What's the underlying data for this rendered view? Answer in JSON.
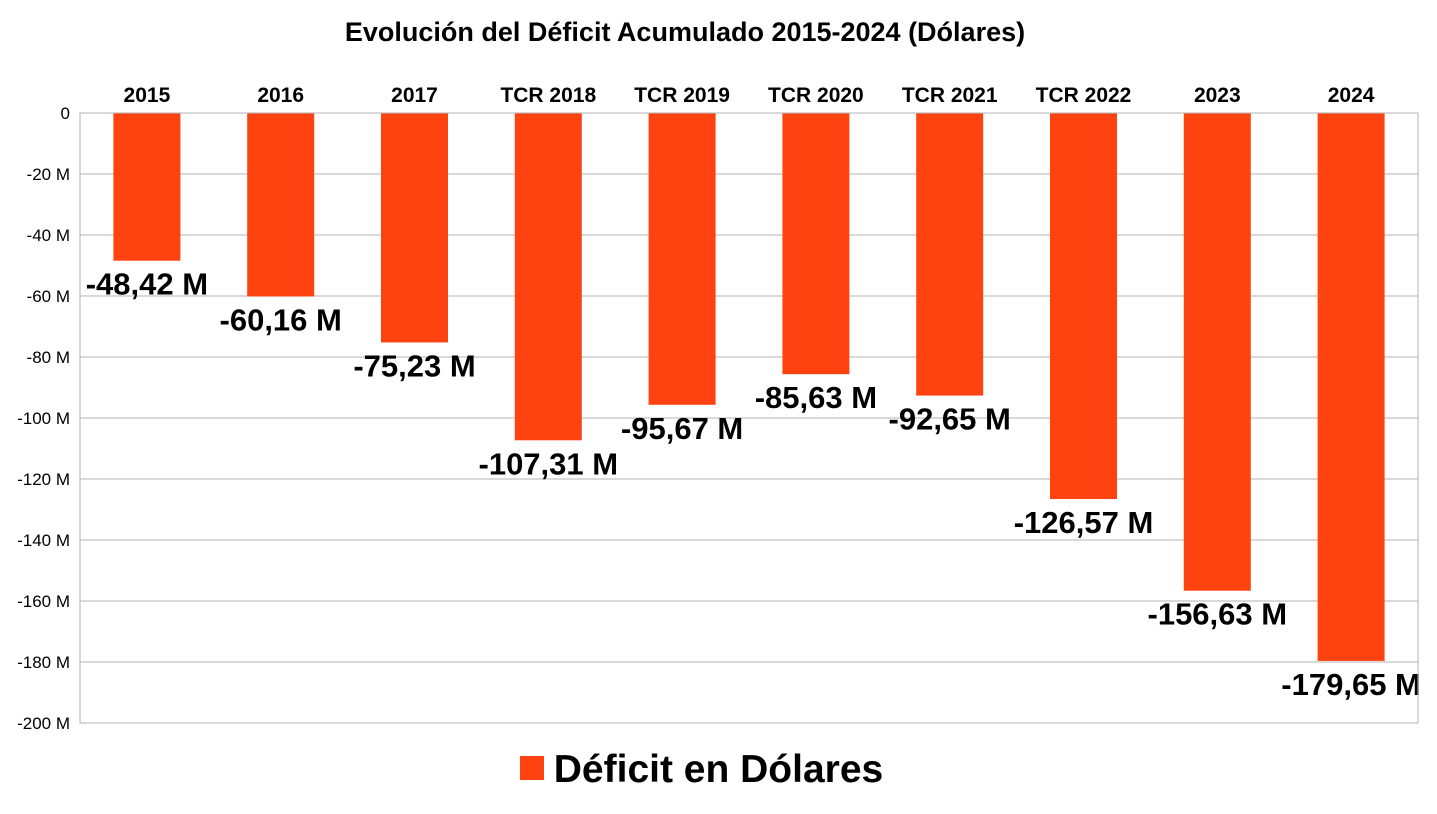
{
  "chart_data": {
    "type": "bar",
    "title": "Evolución del Déficit Acumulado 2015-2024  (Dólares)",
    "categories": [
      "2015",
      "2016",
      "2017",
      "TCR 2018",
      "TCR 2019",
      "TCR 2020",
      "TCR 2021",
      "TCR 2022",
      "2023",
      "2024"
    ],
    "series": [
      {
        "name": "Déficit en Dólares",
        "color": "#ff4310",
        "values": [
          -48.42,
          -60.16,
          -75.23,
          -107.31,
          -95.67,
          -85.63,
          -92.65,
          -126.57,
          -156.63,
          -179.65
        ],
        "labels": [
          "-48,42 M",
          "-60,16 M",
          "-75,23 M",
          "-107,31 M",
          "-95,67 M",
          "-85,63 M",
          "-92,65 M",
          "-126,57 M",
          "-156,63 M",
          "-179,65 M"
        ]
      }
    ],
    "ylim": [
      -200,
      0
    ],
    "yticks": [
      0,
      -20,
      -40,
      -60,
      -80,
      -100,
      -120,
      -140,
      -160,
      -180,
      -200
    ],
    "ytick_labels": [
      "0",
      "-20 M",
      "-40 M",
      "-60 M",
      "-80 M",
      "-100 M",
      "-120 M",
      "-140 M",
      "-160 M",
      "-180 M",
      "-200 M"
    ],
    "xlabel": "",
    "ylabel": "",
    "grid": true,
    "legend_position": "bottom-center",
    "category_axis_position": "top"
  }
}
